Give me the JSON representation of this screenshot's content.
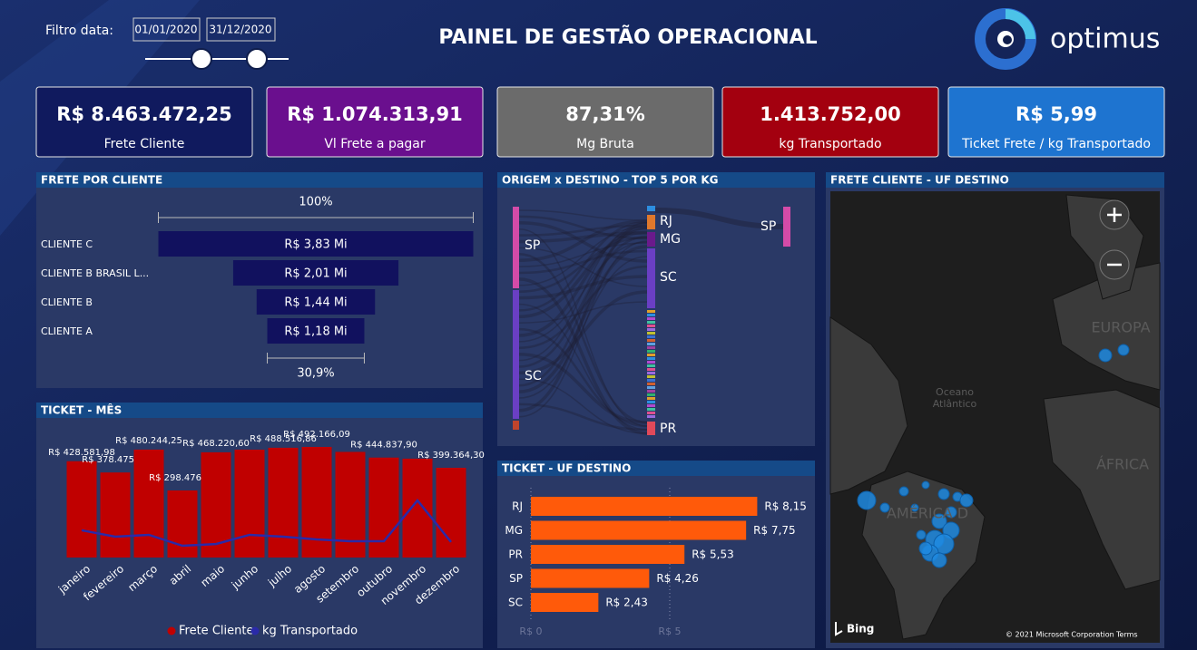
{
  "header": {
    "filter_label": "Filtro data:",
    "date_start": "01/01/2020",
    "date_end": "31/12/2020",
    "title": "PAINEL DE GESTÃO OPERACIONAL",
    "logo": "optimus"
  },
  "kpis": [
    {
      "value": "R$ 8.463.472,25",
      "label": "Frete Cliente",
      "color": "#101a5e"
    },
    {
      "value": "R$ 1.074.313,91",
      "label": "Vl Frete a pagar",
      "color": "#6a0f8e"
    },
    {
      "value": "87,31%",
      "label": "Mg Bruta",
      "color": "#6b6b6b"
    },
    {
      "value": "1.413.752,00",
      "label": "kg Transportado",
      "color": "#a3000f"
    },
    {
      "value": "R$ 5,99",
      "label": "Ticket Frete / kg Transportado",
      "color": "#1e74d0"
    }
  ],
  "chart_data": [
    {
      "type": "funnel",
      "title": "FRETE POR CLIENTE",
      "categories": [
        "CLIENTE C",
        "CLIENTE B BRASIL L...",
        "CLIENTE B",
        "CLIENTE A"
      ],
      "values": [
        3.83,
        2.01,
        1.44,
        1.18
      ],
      "value_labels": [
        "R$ 3,83 Mi",
        "R$ 2,01 Mi",
        "R$ 1,44 Mi",
        "R$ 1,18 Mi"
      ],
      "top_label": "100%",
      "bottom_label": "30,9%",
      "color": "#11115e"
    },
    {
      "type": "bar_line",
      "title": "TICKET - MÊS",
      "categories": [
        "janeiro",
        "fevereiro",
        "março",
        "abril",
        "maio",
        "junho",
        "julho",
        "agosto",
        "setembro",
        "outubro",
        "novembro",
        "dezembro"
      ],
      "series": [
        {
          "name": "Frete Cliente",
          "color": "#c00000",
          "values": [
            428581.98,
            378475.53,
            480244.25,
            298476.27,
            468220.6,
            480000,
            488516.86,
            492166.09,
            470000,
            444837.9,
            440000,
            399364.3
          ],
          "value_labels": [
            "R$ 428.581,98",
            "R$ 378.475,53",
            "R$ 480.244,25",
            "R$ 298.476,27",
            "R$ 468.220,60",
            null,
            "R$ 488.516,86",
            "R$ 492.166,09",
            null,
            "R$ 444.837,90",
            null,
            "R$ 399.364,30"
          ]
        },
        {
          "name": "kg Transportado",
          "color": "#2a2aa8",
          "axis": "y2",
          "values": [
            137000,
            105000,
            114000,
            59000,
            68000,
            114000,
            105000,
            91000,
            82000,
            82000,
            287000,
            78000
          ]
        }
      ]
    },
    {
      "type": "sankey",
      "title": "ORIGEM x DESTINO - TOP 5 POR KG",
      "sources": [
        "SP",
        "SC"
      ],
      "targets": [
        "RJ",
        "MG",
        "SC",
        "PR",
        "SP"
      ]
    },
    {
      "type": "hbar",
      "title": "TICKET - UF DESTINO",
      "categories": [
        "RJ",
        "MG",
        "PR",
        "SP",
        "SC"
      ],
      "values": [
        8.15,
        7.75,
        5.53,
        4.26,
        2.43
      ],
      "value_labels": [
        "R$ 8,15",
        "R$ 7,75",
        "R$ 5,53",
        "R$ 4,26",
        "R$ 2,43"
      ],
      "color": "#ff5a0a",
      "xlim": [
        0,
        10
      ],
      "xticks": [
        {
          "value": 0,
          "label": "R$ 0"
        },
        {
          "value": 5,
          "label": "R$ 5"
        }
      ]
    }
  ],
  "map": {
    "title": "FRETE CLIENTE - UF DESTINO",
    "labels": [
      "EUROPA",
      "Oceano",
      "Atlântico",
      "ÁFRICA",
      "AMÉRICA D"
    ],
    "copyright": "© 2021 Microsoft Corporation",
    "terms": "Terms",
    "provider": "Bing"
  }
}
